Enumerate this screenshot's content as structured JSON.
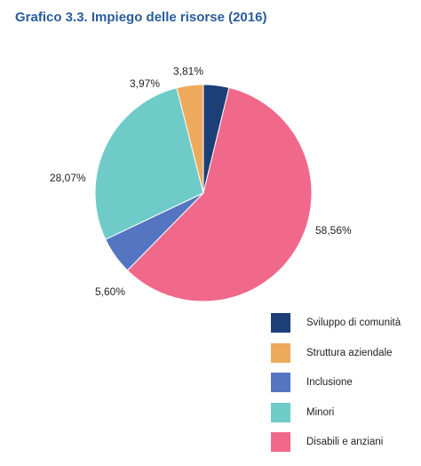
{
  "chart_data": {
    "type": "pie",
    "title": "Grafico 3.3. Impiego delle risorse (2016)",
    "slices": [
      {
        "name": "Sviluppo di comunità",
        "value": 3.81,
        "label": "3,81%",
        "color": "#1c3f77"
      },
      {
        "name": "Disabili e anziani",
        "value": 58.56,
        "label": "58,56%",
        "color": "#f0688a"
      },
      {
        "name": "Inclusione",
        "value": 5.6,
        "label": "5,60%",
        "color": "#5475c2"
      },
      {
        "name": "Minori",
        "value": 28.07,
        "label": "28,07%",
        "color": "#6ecbc8"
      },
      {
        "name": "Struttura aziendale",
        "value": 3.97,
        "label": "3,97%",
        "color": "#eeaa5c"
      }
    ],
    "legend": [
      {
        "label": "Sviluppo di comunità",
        "color": "#1c3f77"
      },
      {
        "label": "Struttura aziendale",
        "color": "#eeaa5c"
      },
      {
        "label": "Inclusione",
        "color": "#5475c2"
      },
      {
        "label": "Minori",
        "color": "#6ecbc8"
      },
      {
        "label": "Disabili e anziani",
        "color": "#f0688a"
      }
    ],
    "legend_position": "bottom-right"
  }
}
